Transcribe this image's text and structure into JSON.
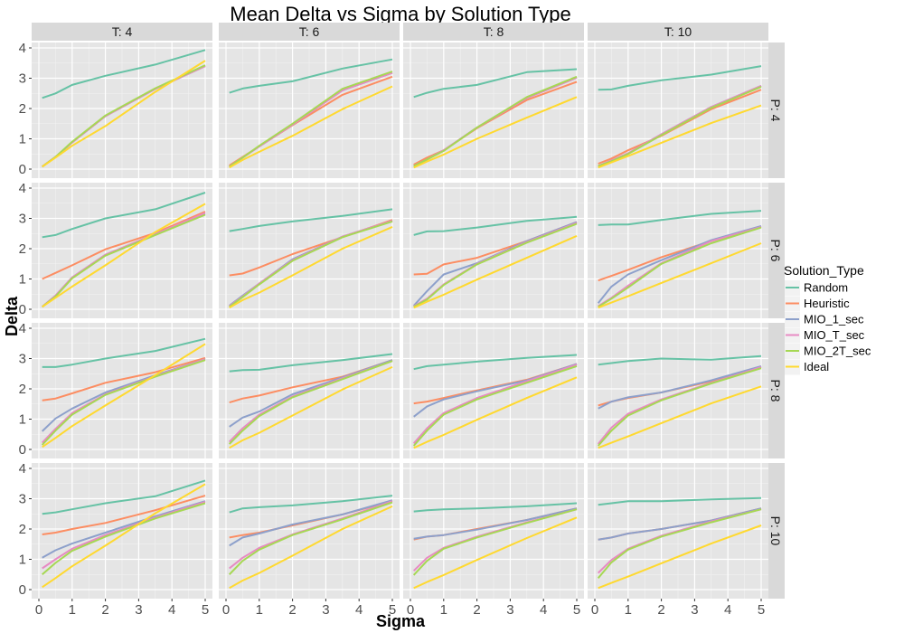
{
  "chart_data": {
    "type": "line",
    "title": "Mean Delta vs Sigma by Solution Type",
    "xlabel": "Sigma",
    "ylabel": "Delta",
    "xlim": [
      0,
      5
    ],
    "ylim": [
      0,
      4
    ],
    "x_ticks": [
      0,
      1,
      2,
      3,
      4,
      5
    ],
    "y_ticks": [
      0,
      1,
      2,
      3,
      4
    ],
    "grid": true,
    "legend": {
      "title": "Solution_Type",
      "position": "right",
      "entries": [
        "Random",
        "Heuristic",
        "MIO_1_sec",
        "MIO_T_sec",
        "MIO_2T_sec",
        "Ideal"
      ]
    },
    "colors": {
      "Random": "#66c2a5",
      "Heuristic": "#fc8d62",
      "MIO_1_sec": "#8da0cb",
      "MIO_T_sec": "#e78ac3",
      "MIO_2T_sec": "#a6d854",
      "Ideal": "#ffd92f"
    },
    "panel_bg": "#e5e5e5",
    "strip_bg": "#d9d9d9",
    "columns": [
      "T: 4",
      "T: 6",
      "T: 8",
      "T: 10"
    ],
    "rows": [
      "P: 4",
      "P: 6",
      "P: 8",
      "P: 10"
    ],
    "x": [
      0.1,
      0.5,
      1,
      2,
      3.5,
      5
    ],
    "panels": [
      [
        {
          "Random": [
            2.35,
            2.5,
            2.78,
            3.08,
            3.45,
            3.93
          ],
          "Heuristic": [
            0.08,
            0.4,
            0.88,
            1.75,
            2.65,
            3.4
          ],
          "MIO_1_sec": [
            0.08,
            0.4,
            0.88,
            1.75,
            2.65,
            3.4
          ],
          "MIO_T_sec": [
            0.08,
            0.4,
            0.88,
            1.75,
            2.65,
            3.4
          ],
          "MIO_2T_sec": [
            0.08,
            0.4,
            0.9,
            1.77,
            2.67,
            3.43
          ],
          "Ideal": [
            0.08,
            0.38,
            0.77,
            1.42,
            2.55,
            3.58
          ]
        },
        {
          "Random": [
            2.52,
            2.66,
            2.75,
            2.9,
            3.32,
            3.62
          ],
          "Heuristic": [
            0.12,
            0.4,
            0.75,
            1.45,
            2.45,
            3.05
          ],
          "MIO_1_sec": [
            0.08,
            0.38,
            0.75,
            1.47,
            2.6,
            3.18
          ],
          "MIO_T_sec": [
            0.08,
            0.38,
            0.75,
            1.47,
            2.6,
            3.18
          ],
          "MIO_2T_sec": [
            0.08,
            0.38,
            0.77,
            1.5,
            2.65,
            3.22
          ],
          "Ideal": [
            0.05,
            0.3,
            0.57,
            1.1,
            1.98,
            2.73
          ]
        },
        {
          "Random": [
            2.38,
            2.52,
            2.65,
            2.78,
            3.2,
            3.3
          ],
          "Heuristic": [
            0.15,
            0.38,
            0.62,
            1.35,
            2.28,
            2.88
          ],
          "MIO_1_sec": [
            0.1,
            0.32,
            0.62,
            1.37,
            2.35,
            3.02
          ],
          "MIO_T_sec": [
            0.1,
            0.32,
            0.62,
            1.37,
            2.35,
            3.02
          ],
          "MIO_2T_sec": [
            0.1,
            0.32,
            0.6,
            1.37,
            2.38,
            3.05
          ],
          "Ideal": [
            0.05,
            0.25,
            0.48,
            1.0,
            1.7,
            2.38
          ]
        },
        {
          "Random": [
            2.62,
            2.63,
            2.75,
            2.93,
            3.12,
            3.4
          ],
          "Heuristic": [
            0.18,
            0.35,
            0.62,
            1.1,
            1.98,
            2.62
          ],
          "MIO_1_sec": [
            0.1,
            0.28,
            0.52,
            1.15,
            2.05,
            2.75
          ],
          "MIO_T_sec": [
            0.1,
            0.28,
            0.52,
            1.15,
            2.05,
            2.75
          ],
          "MIO_2T_sec": [
            0.1,
            0.26,
            0.5,
            1.12,
            2.02,
            2.72
          ],
          "Ideal": [
            0.05,
            0.22,
            0.43,
            0.87,
            1.52,
            2.1
          ]
        }
      ],
      [
        {
          "Random": [
            2.38,
            2.45,
            2.65,
            3.0,
            3.3,
            3.85
          ],
          "Heuristic": [
            1.0,
            1.2,
            1.45,
            1.98,
            2.52,
            3.22
          ],
          "MIO_1_sec": [
            0.08,
            0.45,
            1.05,
            1.8,
            2.48,
            3.15
          ],
          "MIO_T_sec": [
            0.08,
            0.45,
            1.05,
            1.8,
            2.48,
            3.18
          ],
          "MIO_2T_sec": [
            0.08,
            0.42,
            1.02,
            1.77,
            2.45,
            3.12
          ],
          "Ideal": [
            0.08,
            0.38,
            0.75,
            1.45,
            2.55,
            3.48
          ]
        },
        {
          "Random": [
            2.58,
            2.65,
            2.75,
            2.9,
            3.08,
            3.3
          ],
          "Heuristic": [
            1.12,
            1.18,
            1.38,
            1.82,
            2.38,
            2.95
          ],
          "MIO_1_sec": [
            0.12,
            0.45,
            0.85,
            1.65,
            2.4,
            2.92
          ],
          "MIO_T_sec": [
            0.1,
            0.42,
            0.85,
            1.62,
            2.4,
            2.92
          ],
          "MIO_2T_sec": [
            0.08,
            0.4,
            0.82,
            1.6,
            2.38,
            2.9
          ],
          "Ideal": [
            0.05,
            0.3,
            0.55,
            1.12,
            2.0,
            2.72
          ]
        },
        {
          "Random": [
            2.45,
            2.57,
            2.58,
            2.7,
            2.92,
            3.05
          ],
          "Heuristic": [
            1.15,
            1.17,
            1.48,
            1.7,
            2.25,
            2.88
          ],
          "MIO_1_sec": [
            0.12,
            0.6,
            1.15,
            1.52,
            2.25,
            2.88
          ],
          "MIO_T_sec": [
            0.1,
            0.35,
            0.82,
            1.5,
            2.22,
            2.85
          ],
          "MIO_2T_sec": [
            0.08,
            0.32,
            0.8,
            1.48,
            2.2,
            2.82
          ],
          "Ideal": [
            0.05,
            0.25,
            0.48,
            0.98,
            1.7,
            2.42
          ]
        },
        {
          "Random": [
            2.78,
            2.8,
            2.8,
            2.95,
            3.15,
            3.25
          ],
          "Heuristic": [
            0.95,
            1.1,
            1.3,
            1.72,
            2.25,
            2.72
          ],
          "MIO_1_sec": [
            0.2,
            0.75,
            1.15,
            1.62,
            2.28,
            2.75
          ],
          "MIO_T_sec": [
            0.1,
            0.38,
            0.78,
            1.52,
            2.25,
            2.72
          ],
          "MIO_2T_sec": [
            0.08,
            0.35,
            0.72,
            1.5,
            2.18,
            2.7
          ],
          "Ideal": [
            0.05,
            0.22,
            0.43,
            0.87,
            1.52,
            2.18
          ]
        }
      ],
      [
        {
          "Random": [
            2.72,
            2.72,
            2.8,
            3.0,
            3.25,
            3.65
          ],
          "Heuristic": [
            1.62,
            1.68,
            1.85,
            2.2,
            2.55,
            3.02
          ],
          "MIO_1_sec": [
            0.6,
            1.02,
            1.35,
            1.88,
            2.45,
            2.98
          ],
          "MIO_T_sec": [
            0.22,
            0.68,
            1.2,
            1.82,
            2.42,
            2.98
          ],
          "MIO_2T_sec": [
            0.15,
            0.62,
            1.15,
            1.8,
            2.4,
            2.95
          ],
          "Ideal": [
            0.08,
            0.38,
            0.77,
            1.45,
            2.45,
            3.48
          ]
        },
        {
          "Random": [
            2.58,
            2.62,
            2.63,
            2.78,
            2.95,
            3.15
          ],
          "Heuristic": [
            1.55,
            1.68,
            1.78,
            2.05,
            2.4,
            2.95
          ],
          "MIO_1_sec": [
            0.75,
            1.05,
            1.25,
            1.82,
            2.38,
            2.95
          ],
          "MIO_T_sec": [
            0.25,
            0.7,
            1.15,
            1.75,
            2.35,
            2.92
          ],
          "MIO_2T_sec": [
            0.18,
            0.62,
            1.1,
            1.72,
            2.32,
            2.92
          ],
          "Ideal": [
            0.05,
            0.3,
            0.55,
            1.12,
            1.98,
            2.72
          ]
        },
        {
          "Random": [
            2.65,
            2.75,
            2.8,
            2.9,
            3.02,
            3.12
          ],
          "Heuristic": [
            1.52,
            1.58,
            1.7,
            1.95,
            2.3,
            2.82
          ],
          "MIO_1_sec": [
            1.08,
            1.42,
            1.65,
            1.92,
            2.28,
            2.82
          ],
          "MIO_T_sec": [
            0.2,
            0.7,
            1.2,
            1.7,
            2.25,
            2.8
          ],
          "MIO_2T_sec": [
            0.12,
            0.62,
            1.15,
            1.65,
            2.2,
            2.75
          ],
          "Ideal": [
            0.05,
            0.25,
            0.48,
            0.98,
            1.7,
            2.38
          ]
        },
        {
          "Random": [
            2.8,
            2.85,
            2.92,
            3.0,
            2.96,
            3.08
          ],
          "Heuristic": [
            1.45,
            1.58,
            1.7,
            1.88,
            2.25,
            2.72
          ],
          "MIO_1_sec": [
            1.35,
            1.58,
            1.72,
            1.88,
            2.28,
            2.75
          ],
          "MIO_T_sec": [
            0.18,
            0.72,
            1.18,
            1.65,
            2.2,
            2.72
          ],
          "MIO_2T_sec": [
            0.12,
            0.62,
            1.12,
            1.62,
            2.18,
            2.68
          ],
          "Ideal": [
            0.05,
            0.22,
            0.43,
            0.87,
            1.52,
            2.08
          ]
        }
      ],
      [
        {
          "Random": [
            2.5,
            2.55,
            2.65,
            2.85,
            3.08,
            3.6
          ],
          "Heuristic": [
            1.82,
            1.88,
            2.0,
            2.2,
            2.62,
            3.1
          ],
          "MIO_1_sec": [
            1.05,
            1.3,
            1.52,
            1.88,
            2.42,
            2.92
          ],
          "MIO_T_sec": [
            0.7,
            1.0,
            1.35,
            1.8,
            2.38,
            2.9
          ],
          "MIO_2T_sec": [
            0.5,
            0.88,
            1.28,
            1.75,
            2.35,
            2.85
          ],
          "Ideal": [
            0.08,
            0.38,
            0.77,
            1.45,
            2.52,
            3.48
          ]
        },
        {
          "Random": [
            2.55,
            2.68,
            2.72,
            2.78,
            2.92,
            3.1
          ],
          "Heuristic": [
            1.72,
            1.8,
            1.88,
            2.12,
            2.48,
            2.92
          ],
          "MIO_1_sec": [
            1.45,
            1.72,
            1.85,
            2.15,
            2.48,
            2.95
          ],
          "MIO_T_sec": [
            0.7,
            1.05,
            1.38,
            1.82,
            2.35,
            2.92
          ],
          "MIO_2T_sec": [
            0.5,
            0.95,
            1.32,
            1.8,
            2.32,
            2.88
          ],
          "Ideal": [
            0.05,
            0.3,
            0.55,
            1.12,
            2.0,
            2.75
          ]
        },
        {
          "Random": [
            2.58,
            2.62,
            2.65,
            2.68,
            2.75,
            2.85
          ],
          "Heuristic": [
            1.65,
            1.75,
            1.8,
            2.0,
            2.3,
            2.68
          ],
          "MIO_1_sec": [
            1.68,
            1.75,
            1.8,
            1.98,
            2.3,
            2.68
          ],
          "MIO_T_sec": [
            0.62,
            1.05,
            1.38,
            1.75,
            2.22,
            2.65
          ],
          "MIO_2T_sec": [
            0.48,
            0.95,
            1.35,
            1.72,
            2.2,
            2.65
          ],
          "Ideal": [
            0.05,
            0.25,
            0.48,
            0.98,
            1.7,
            2.38
          ]
        },
        {
          "Random": [
            2.8,
            2.85,
            2.92,
            2.92,
            2.98,
            3.02
          ],
          "Heuristic": [
            1.65,
            1.72,
            1.85,
            2.0,
            2.28,
            2.68
          ],
          "MIO_1_sec": [
            1.65,
            1.72,
            1.85,
            2.0,
            2.28,
            2.68
          ],
          "MIO_T_sec": [
            0.55,
            0.98,
            1.35,
            1.78,
            2.25,
            2.65
          ],
          "MIO_2T_sec": [
            0.38,
            0.9,
            1.32,
            1.75,
            2.22,
            2.65
          ],
          "Ideal": [
            0.05,
            0.22,
            0.43,
            0.87,
            1.52,
            2.12
          ]
        }
      ]
    ]
  }
}
